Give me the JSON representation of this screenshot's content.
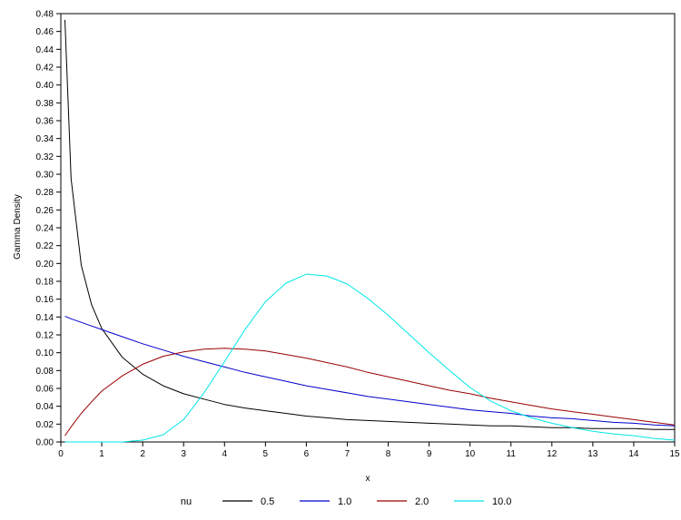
{
  "chart_data": {
    "type": "line",
    "xlabel": "x",
    "ylabel": "Gamma Density",
    "xlim": [
      0,
      15
    ],
    "ylim": [
      0,
      0.48
    ],
    "x_ticks": [
      0,
      1,
      2,
      3,
      4,
      5,
      6,
      7,
      8,
      9,
      10,
      11,
      12,
      13,
      14,
      15
    ],
    "y_ticks": [
      0.0,
      0.02,
      0.04,
      0.06,
      0.08,
      0.1,
      0.12,
      0.14,
      0.16,
      0.18,
      0.2,
      0.22,
      0.24,
      0.26,
      0.28,
      0.3,
      0.32,
      0.34,
      0.36,
      0.38,
      0.4,
      0.42,
      0.44,
      0.46,
      0.48
    ],
    "y_tick_labels": [
      "0.00",
      "0.02",
      "0.04",
      "0.06",
      "0.08",
      "0.10",
      "0.12",
      "0.14",
      "0.16",
      "0.18",
      "0.20",
      "0.22",
      "0.24",
      "0.26",
      "0.28",
      "0.30",
      "0.32",
      "0.34",
      "0.36",
      "0.38",
      "0.40",
      "0.42",
      "0.44",
      "0.46",
      "0.48"
    ],
    "grid": false,
    "legend_title": "nu",
    "legend_position": "bottom",
    "x": [
      0.1,
      0.25,
      0.5,
      0.75,
      1,
      1.5,
      2,
      2.5,
      3,
      3.5,
      4,
      4.5,
      5,
      5.5,
      6,
      6.5,
      7,
      7.5,
      8,
      8.5,
      9,
      9.5,
      10,
      10.5,
      11,
      11.5,
      12,
      12.5,
      13,
      13.5,
      14,
      14.5,
      15
    ],
    "series": [
      {
        "name": "0.5",
        "color": "#000000",
        "values": [
          0.473,
          0.295,
          0.198,
          0.154,
          0.127,
          0.095,
          0.076,
          0.063,
          0.054,
          0.048,
          0.042,
          0.038,
          0.035,
          0.032,
          0.029,
          0.027,
          0.025,
          0.024,
          0.023,
          0.022,
          0.021,
          0.02,
          0.019,
          0.018,
          0.018,
          0.017,
          0.016,
          0.016,
          0.015,
          0.015,
          0.015,
          0.014,
          0.014
        ]
      },
      {
        "name": "1.0",
        "color": "#0000cc",
        "values": [
          0.141,
          0.138,
          0.134,
          0.13,
          0.126,
          0.118,
          0.11,
          0.103,
          0.096,
          0.09,
          0.084,
          0.078,
          0.073,
          0.068,
          0.063,
          0.059,
          0.055,
          0.051,
          0.048,
          0.045,
          0.042,
          0.039,
          0.036,
          0.034,
          0.032,
          0.029,
          0.027,
          0.026,
          0.024,
          0.022,
          0.021,
          0.019,
          0.018
        ]
      },
      {
        "name": "2.0",
        "color": "#990000",
        "values": [
          0.007,
          0.017,
          0.032,
          0.045,
          0.057,
          0.074,
          0.087,
          0.096,
          0.101,
          0.104,
          0.105,
          0.104,
          0.102,
          0.098,
          0.094,
          0.089,
          0.084,
          0.078,
          0.073,
          0.068,
          0.063,
          0.058,
          0.054,
          0.049,
          0.045,
          0.041,
          0.037,
          0.034,
          0.031,
          0.028,
          0.025,
          0.022,
          0.019
        ]
      },
      {
        "name": "10.0",
        "color": "#00e6e6",
        "values": [
          0.0,
          0.0,
          0.0,
          0.0,
          0.0,
          0.0,
          0.002,
          0.008,
          0.025,
          0.055,
          0.09,
          0.126,
          0.157,
          0.178,
          0.188,
          0.186,
          0.177,
          0.161,
          0.142,
          0.121,
          0.1,
          0.08,
          0.061,
          0.046,
          0.035,
          0.027,
          0.021,
          0.016,
          0.012,
          0.009,
          0.007,
          0.004,
          0.002
        ]
      }
    ]
  }
}
